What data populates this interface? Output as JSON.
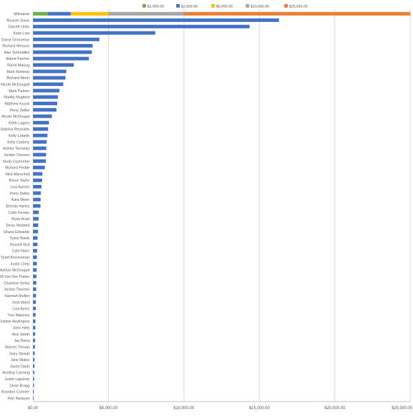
{
  "chart_data": {
    "type": "bar",
    "orientation": "horizontal",
    "stacked": true,
    "legend_position": "top",
    "gridlines": "vertical",
    "xlim": [
      0,
      25000
    ],
    "x_ticks": [
      0,
      5000,
      10000,
      15000,
      20000,
      25000
    ],
    "x_tick_labels": [
      "$0.00",
      "$5,000.00",
      "$10,000.00",
      "$15,000.00",
      "$20,000.00",
      "$25,000.00"
    ],
    "categories": [
      "Milestone",
      "Ricardo Davis",
      "Garrett Uhler",
      "Kiam Low",
      "Darryl Grosvenor",
      "Richard Wesson",
      "Alex Schmidtke",
      "Blaine Fischer",
      "Ramil Maisog",
      "Mark Bombay",
      "Richard Morin",
      "Nicole McDougall",
      "Mark Palmer",
      "Shelby Mugford",
      "Matthew Kuzyk",
      "Perry Zielke",
      "Nicole McDougal",
      "Keith Lagere",
      "Sabrina Reynolds",
      "Kelly Lobello",
      "Kelly Carbery",
      "Ashley Tamasky",
      "Jordan Thorsen",
      "Noah Coulombe",
      "Richard Pedde",
      "Nick Marschall",
      "Bruce Taylor",
      "Lisa Ayeres",
      "Perry Zielke",
      "Kara Meier",
      "Brenda Harley",
      "Colin Ferster",
      "Ryan Acari",
      "Devin Waddell",
      "Shane Edwards",
      "Tyson Bavle",
      "Russell Bull",
      "Cale Nairn",
      "Tyrell Brenneman",
      "Justin Chep",
      "Ashlyn McDougall",
      "Will Von Der Putten",
      "Charlene Serby",
      "Jordan Thorsen",
      "Hannah Mullen",
      "Josh Ward",
      "Lisa Ayres",
      "Troy Maloney",
      "Kristine Heylingers",
      "John Hieb",
      "Rick Smith",
      "Jay Barot",
      "Warren Throop",
      "Gary Straub",
      "Jaris Wales",
      "Jason Daub",
      "Austing Canning",
      "Justin Lapointe",
      "Dean Bragg",
      "Brandon Cormier",
      "Ron Narayan"
    ],
    "series": [
      {
        "name": "$1,000.00",
        "color": "#70ad47",
        "values": [
          1000,
          0,
          0,
          0,
          0,
          0,
          0,
          0,
          0,
          0,
          0,
          0,
          0,
          0,
          0,
          0,
          0,
          0,
          0,
          0,
          0,
          0,
          0,
          0,
          0,
          0,
          0,
          0,
          0,
          0,
          0,
          0,
          0,
          0,
          0,
          0,
          0,
          0,
          0,
          0,
          0,
          0,
          0,
          0,
          0,
          0,
          0,
          0,
          0,
          0,
          0,
          0,
          0,
          0,
          0,
          0,
          0,
          0,
          0,
          0,
          0
        ]
      },
      {
        "name": "$2,500.00",
        "color": "#4472c4",
        "values": [
          1500,
          16300,
          14350,
          8100,
          4400,
          3950,
          3900,
          3700,
          2700,
          2200,
          2150,
          2000,
          1750,
          1650,
          1600,
          1550,
          1250,
          1050,
          1000,
          950,
          900,
          880,
          860,
          850,
          780,
          620,
          600,
          560,
          520,
          500,
          490,
          380,
          370,
          340,
          330,
          300,
          290,
          270,
          260,
          250,
          240,
          230,
          220,
          210,
          200,
          190,
          180,
          170,
          160,
          150,
          140,
          130,
          120,
          110,
          100,
          90,
          80,
          70,
          60,
          50,
          40
        ]
      },
      {
        "name": "$5,000.00",
        "color": "#ffc000",
        "values": [
          2500,
          0,
          0,
          0,
          0,
          0,
          0,
          0,
          0,
          0,
          0,
          0,
          0,
          0,
          0,
          0,
          0,
          0,
          0,
          0,
          0,
          0,
          0,
          0,
          0,
          0,
          0,
          0,
          0,
          0,
          0,
          0,
          0,
          0,
          0,
          0,
          0,
          0,
          0,
          0,
          0,
          0,
          0,
          0,
          0,
          0,
          0,
          0,
          0,
          0,
          0,
          0,
          0,
          0,
          0,
          0,
          0,
          0,
          0,
          0,
          0
        ]
      },
      {
        "name": "$10,000.00",
        "color": "#a5a5a5",
        "values": [
          5000,
          0,
          0,
          0,
          0,
          0,
          0,
          0,
          0,
          0,
          0,
          0,
          0,
          0,
          0,
          0,
          0,
          0,
          0,
          0,
          0,
          0,
          0,
          0,
          0,
          0,
          0,
          0,
          0,
          0,
          0,
          0,
          0,
          0,
          0,
          0,
          0,
          0,
          0,
          0,
          0,
          0,
          0,
          0,
          0,
          0,
          0,
          0,
          0,
          0,
          0,
          0,
          0,
          0,
          0,
          0,
          0,
          0,
          0,
          0,
          0
        ]
      },
      {
        "name": "$25,000.00",
        "color": "#ed7d31",
        "values": [
          15000,
          0,
          0,
          0,
          0,
          0,
          0,
          0,
          0,
          0,
          0,
          0,
          0,
          0,
          0,
          0,
          0,
          0,
          0,
          0,
          0,
          0,
          0,
          0,
          0,
          0,
          0,
          0,
          0,
          0,
          0,
          0,
          0,
          0,
          0,
          0,
          0,
          0,
          0,
          0,
          0,
          0,
          0,
          0,
          0,
          0,
          0,
          0,
          0,
          0,
          0,
          0,
          0,
          0,
          0,
          0,
          0,
          0,
          0,
          0,
          0
        ]
      }
    ]
  }
}
